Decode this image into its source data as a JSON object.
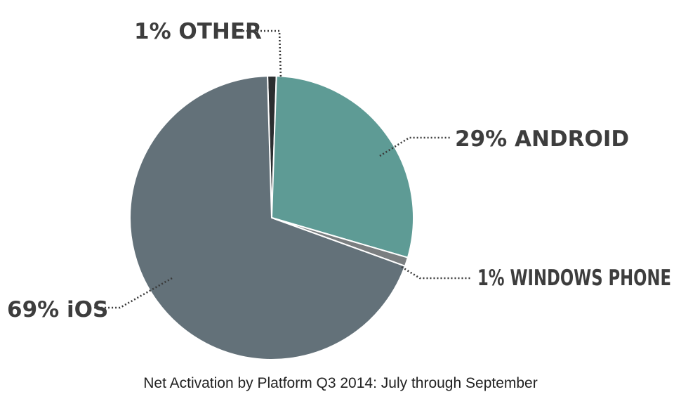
{
  "chart_data": {
    "type": "pie",
    "caption": "Net Activation by Platform Q3 2014: July through September",
    "slices": [
      {
        "label": "1% OTHER",
        "name": "OTHER",
        "value": 1,
        "color": "#2b2e30"
      },
      {
        "label": "29% ANDROID",
        "name": "ANDROID",
        "value": 29,
        "color": "#5e9b95"
      },
      {
        "label": "1% WINDOWS PHONE",
        "name": "WINDOWS PHONE",
        "value": 1,
        "color": "#7a7e80"
      },
      {
        "label": "69% iOS",
        "name": "iOS",
        "value": 69,
        "color": "#637179"
      }
    ]
  }
}
